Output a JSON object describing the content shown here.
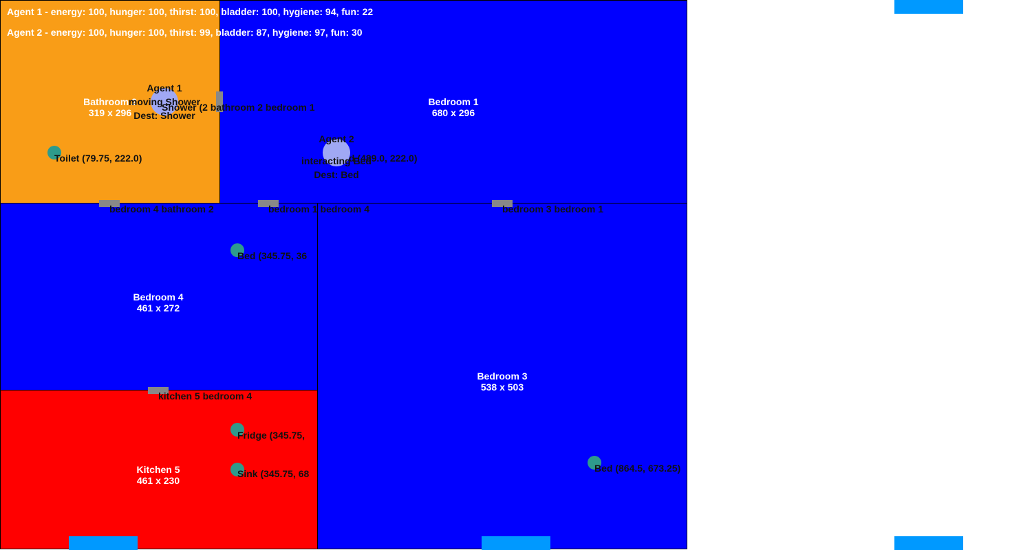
{
  "colors": {
    "bedroom": "#0000ff",
    "bathroom": "#f99d17",
    "kitchen": "#ff0000",
    "door": "#888888",
    "object": "#2e9b8c",
    "agent": "#a0a8f4",
    "tab": "#0099ff"
  },
  "rooms": {
    "bathroom2": {
      "name": "Bathroom 2",
      "size": "319 x 296"
    },
    "bedroom1": {
      "name": "Bedroom 1",
      "size": "680 x 296"
    },
    "bedroom4": {
      "name": "Bedroom 4",
      "size": "461 x 272"
    },
    "bedroom3": {
      "name": "Bedroom 3",
      "size": "538 x 503"
    },
    "kitchen5": {
      "name": "Kitchen 5",
      "size": "461 x 230"
    }
  },
  "doors": {
    "shower_bathroom2_bedroom1": "Shower (2 bathroom 2 bedroom 1",
    "bedroom4_bathroom2": "bedroom 4 bathroom 2",
    "bedroom1_bedroom4": "bedroom 1 bedroom 4",
    "bedroom3_bedroom1": "bedroom 3 bedroom 1",
    "kitchen5_bedroom4": "kitchen 5 bedroom 4"
  },
  "objects": {
    "toilet": "Toilet (79.75, 222.0)",
    "bed_bedroom1": "Bed (489.0, 222.0)",
    "bed_bedroom4": "Bed (345.75, 36",
    "fridge": "Fridge (345.75,",
    "sink": "Sink (345.75, 68",
    "bed_bedroom3": "Bed (864.5, 673.25)"
  },
  "agents": {
    "agent1": {
      "name": "Agent 1",
      "status": "moving Shower",
      "dest": "Dest: Shower"
    },
    "agent2": {
      "name": "Agent 2",
      "status": "interacting Bed",
      "dest": "Dest: Bed"
    }
  },
  "stats": {
    "agent1": "Agent 1 - energy: 100, hunger: 100, thirst: 100, bladder: 100, hygiene: 94, fun: 22",
    "agent2": "Agent 2 - energy: 100, hunger: 100, thirst: 99, bladder: 87, hygiene: 97, fun: 30"
  }
}
